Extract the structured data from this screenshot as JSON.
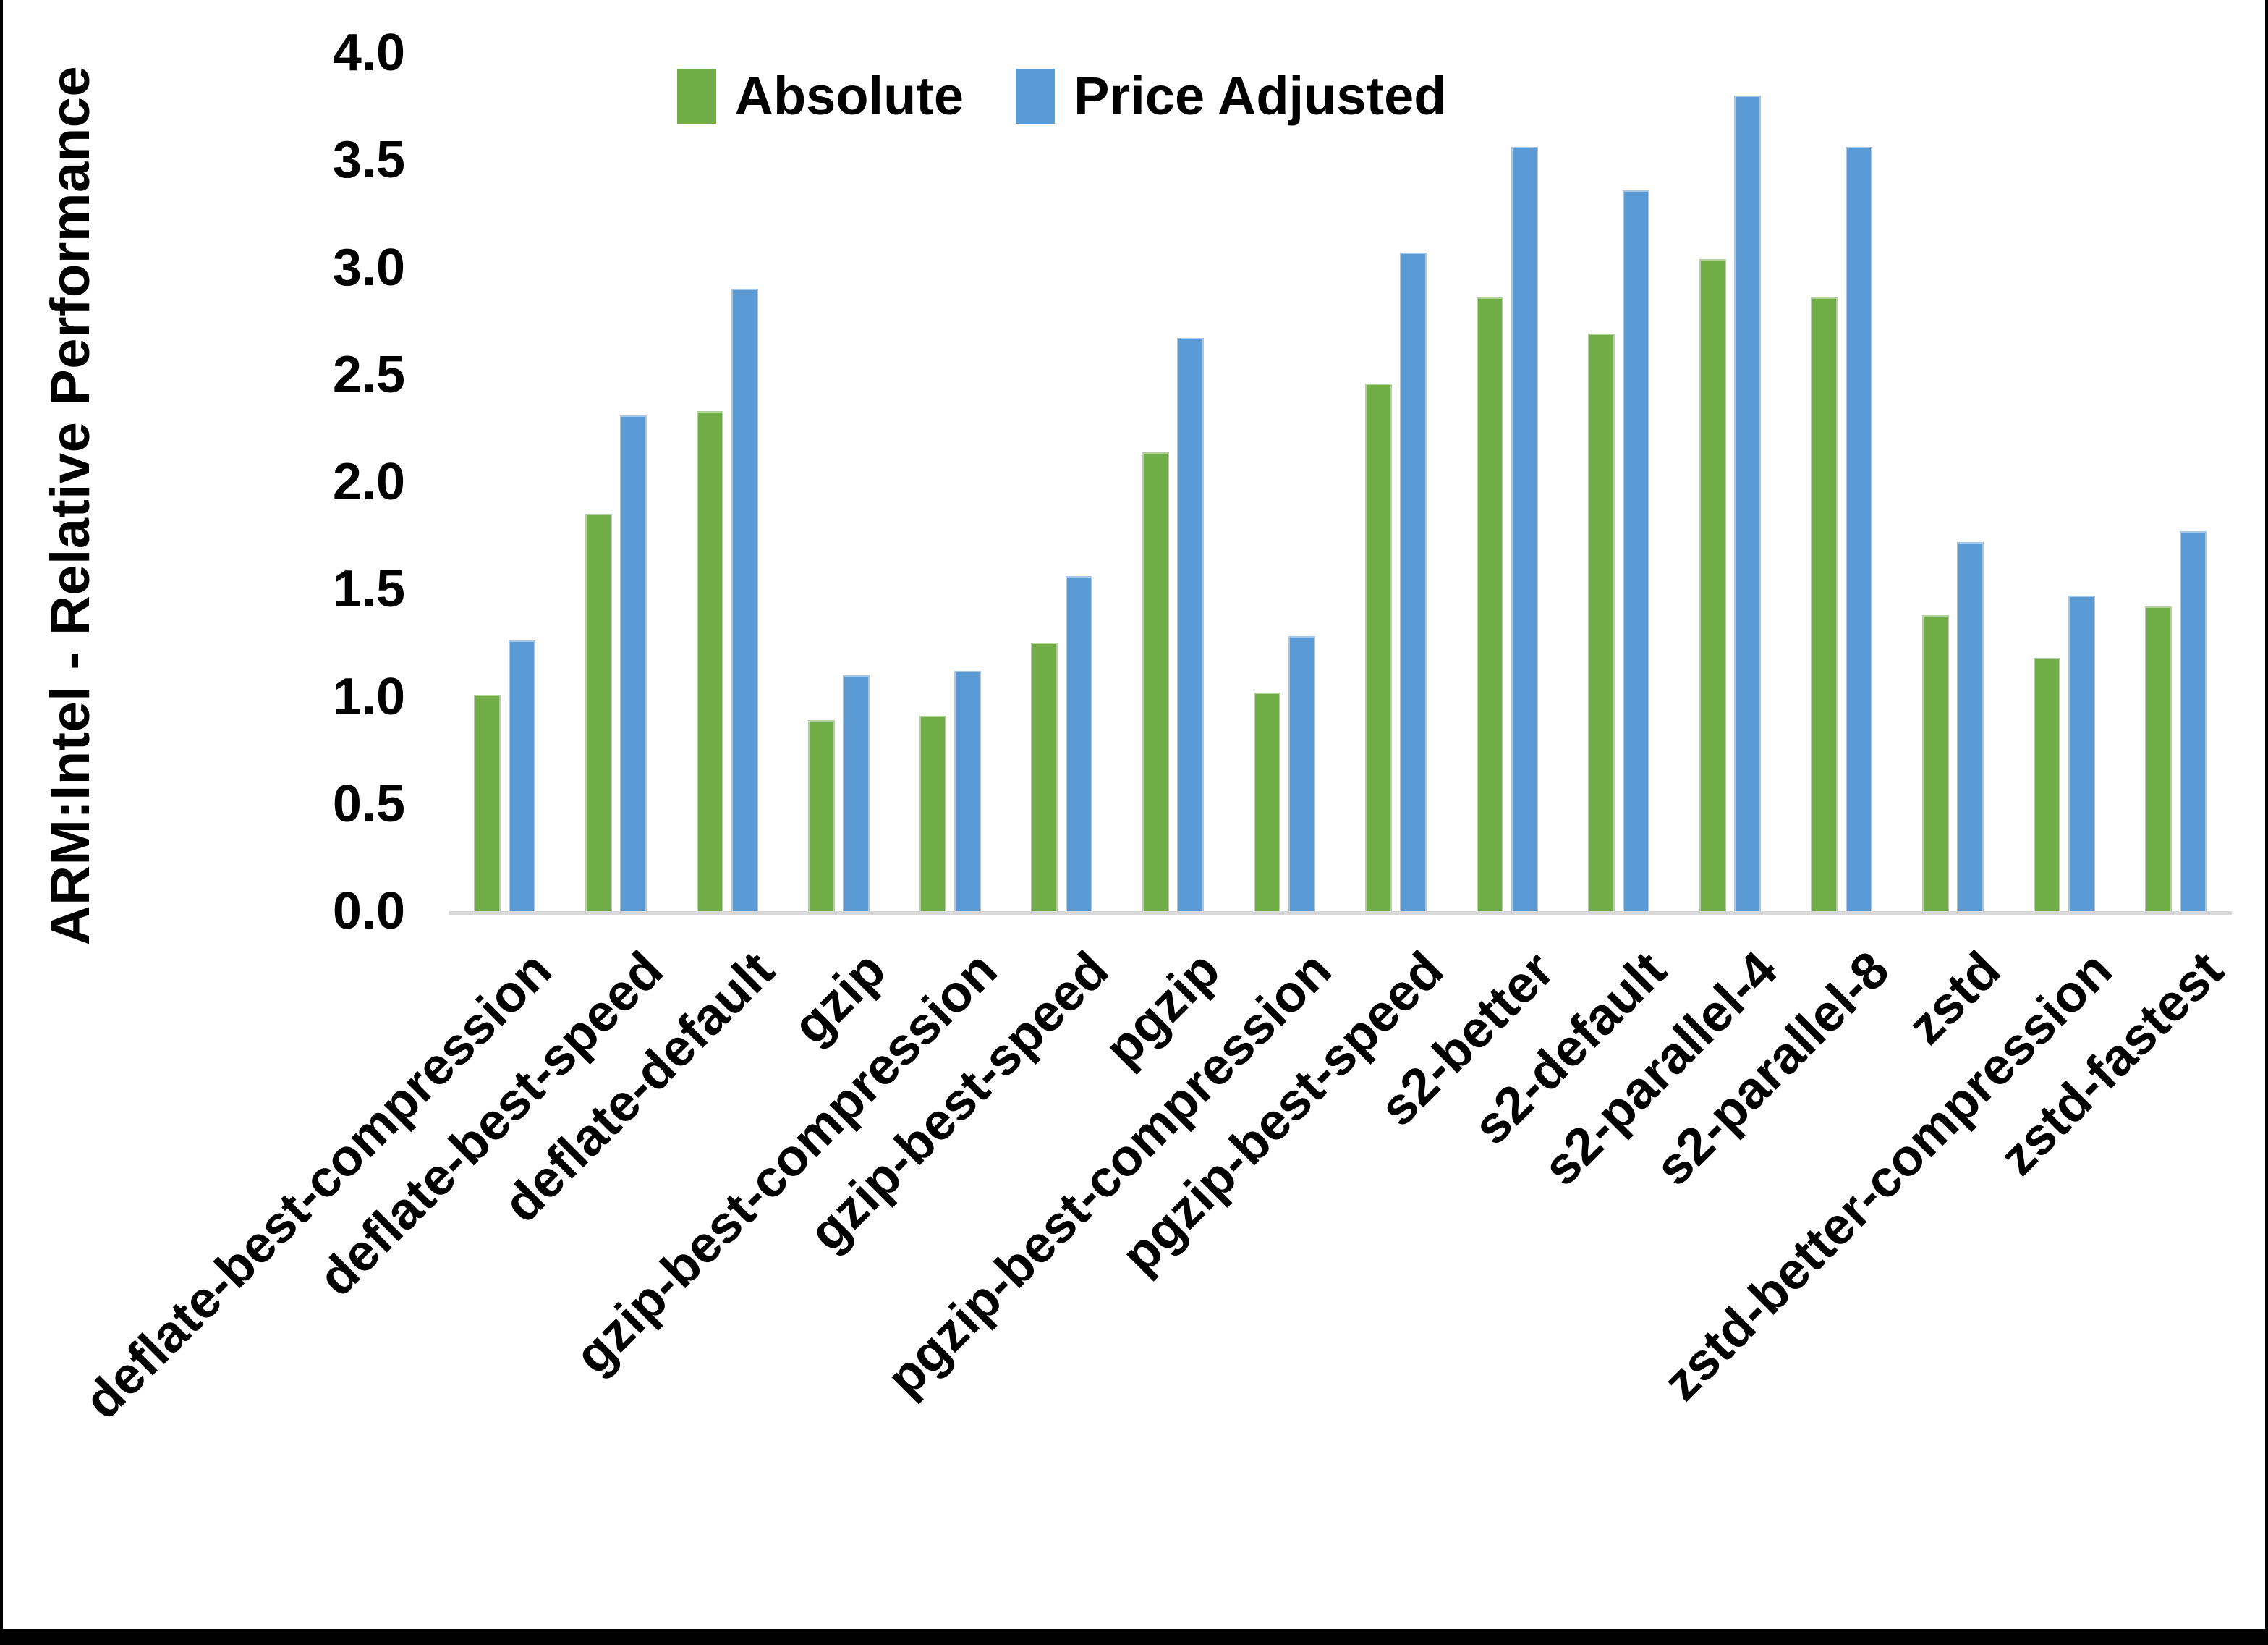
{
  "chart_data": {
    "type": "bar",
    "title": "",
    "xlabel": "",
    "ylabel": "ARM:Intel - Relative Performance",
    "ylim": [
      0,
      4.0
    ],
    "ytick_step": 0.5,
    "yticks": [
      "0.0",
      "0.5",
      "1.0",
      "1.5",
      "2.0",
      "2.5",
      "3.0",
      "3.5",
      "4.0"
    ],
    "grid": false,
    "legend_position": "top-center",
    "axis_line_color": "#d9d9d9",
    "categories": [
      "deflate-best-compression",
      "deflate-best-speed",
      "deflate-default",
      "gzip",
      "gzip-best-compression",
      "gzip-best-speed",
      "pgzip",
      "pgzip-best-compression",
      "pgzip-best-speed",
      "s2-better",
      "s2-default",
      "s2-parallel-4",
      "s2-parallel-8",
      "zstd",
      "zstd-better-compression",
      "zstd-fastest"
    ],
    "series": [
      {
        "name": "Absolute",
        "color": "#70AD47",
        "values": [
          1.01,
          1.85,
          2.33,
          0.89,
          0.91,
          1.25,
          2.14,
          1.02,
          2.46,
          2.86,
          2.69,
          3.04,
          2.86,
          1.38,
          1.18,
          1.42
        ]
      },
      {
        "name": "Price Adjusted",
        "color": "#5B9BD5",
        "values": [
          1.26,
          2.31,
          2.9,
          1.1,
          1.12,
          1.56,
          2.67,
          1.28,
          3.07,
          3.56,
          3.36,
          3.8,
          3.56,
          1.72,
          1.47,
          1.77
        ]
      }
    ]
  }
}
